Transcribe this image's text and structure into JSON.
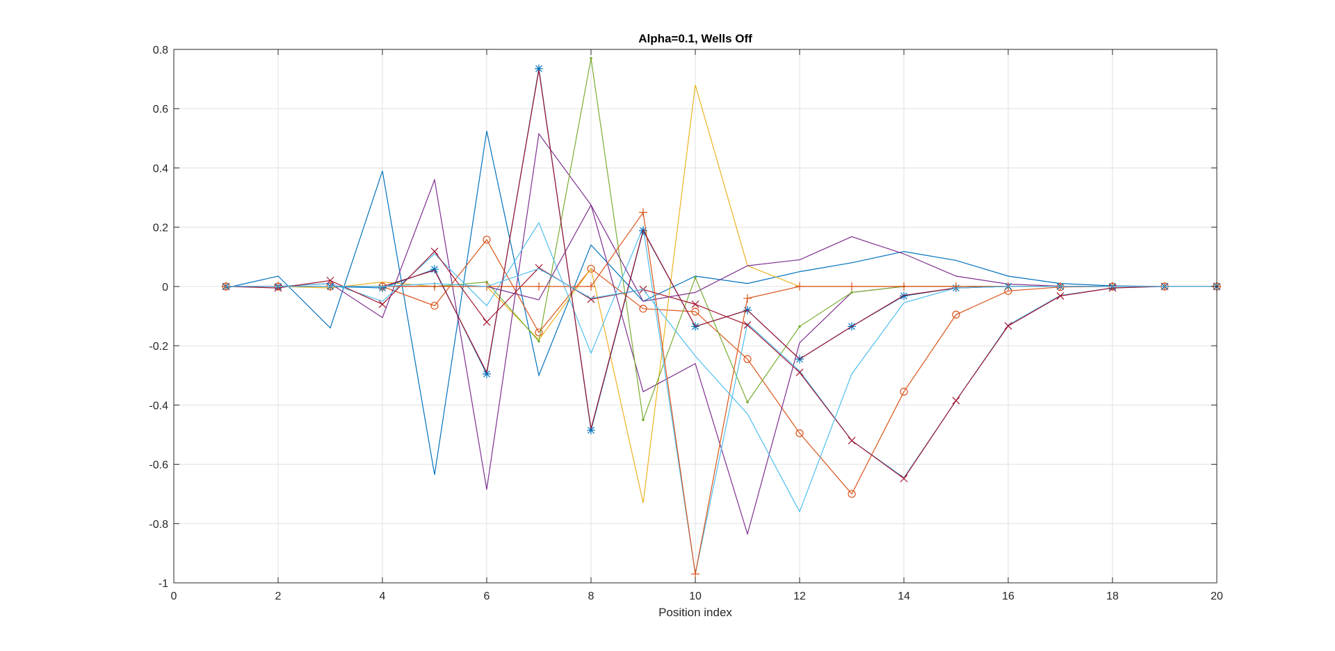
{
  "chart_data": {
    "type": "line",
    "title": "Alpha=0.1, Wells Off",
    "xlabel": "Position index",
    "ylabel": "",
    "xlim": [
      0,
      20
    ],
    "ylim": [
      -1,
      0.8
    ],
    "xticks": [
      0,
      2,
      4,
      6,
      8,
      10,
      12,
      14,
      16,
      18,
      20
    ],
    "yticks": [
      -1,
      -0.8,
      -0.6,
      -0.4,
      -0.2,
      0,
      0.2,
      0.4,
      0.6,
      0.8
    ],
    "xtick_labels": [
      "0",
      "2",
      "4",
      "6",
      "8",
      "10",
      "12",
      "14",
      "16",
      "18",
      "20"
    ],
    "ytick_labels": [
      "-1",
      "-0.8",
      "-0.6",
      "-0.4",
      "-0.2",
      "0",
      "0.2",
      "0.4",
      "0.6",
      "0.8"
    ],
    "grid": true,
    "x": [
      1,
      2,
      3,
      4,
      5,
      6,
      7,
      8,
      9,
      10,
      11,
      12,
      13,
      14,
      15,
      16,
      17,
      18,
      19,
      20
    ],
    "series": [
      {
        "color": "#0072BD",
        "marker": "none",
        "values": [
          -0.005,
          0.035,
          -0.14,
          0.39,
          -0.635,
          0.525,
          -0.3,
          0.14,
          -0.05,
          0.035,
          0.01,
          0.05,
          0.08,
          0.118,
          0.088,
          0.035,
          0.01,
          0.002,
          0.0,
          0.0
        ]
      },
      {
        "color": "#D95319",
        "marker": "o",
        "values": [
          0.0,
          0.0,
          0.0,
          0.0,
          -0.065,
          0.158,
          -0.155,
          0.06,
          -0.075,
          -0.085,
          -0.245,
          -0.495,
          -0.7,
          -0.355,
          -0.095,
          -0.015,
          -0.002,
          0.0,
          0.0,
          0.0
        ]
      },
      {
        "color": "#EDB120",
        "marker": "none",
        "values": [
          0.0,
          0.0,
          -0.005,
          0.015,
          0.0,
          0.0,
          -0.18,
          0.06,
          -0.73,
          0.68,
          0.07,
          0.0,
          0.0,
          0.0,
          0.0,
          0.0,
          0.0,
          0.0,
          0.0,
          0.0
        ]
      },
      {
        "color": "#7E2F8E",
        "marker": "none",
        "values": [
          0.0,
          0.0,
          0.01,
          -0.105,
          0.36,
          -0.685,
          0.515,
          0.275,
          -0.355,
          -0.26,
          -0.835,
          -0.19,
          -0.02,
          0.0,
          0.0,
          0.0,
          0.0,
          0.0,
          0.0,
          0.0
        ]
      },
      {
        "color": "#77AC30",
        "marker": ".",
        "values": [
          0.0,
          0.0,
          0.0,
          0.0,
          0.0,
          0.015,
          -0.185,
          0.77,
          -0.45,
          0.03,
          -0.39,
          -0.135,
          -0.02,
          0.0,
          0.0,
          0.0,
          0.0,
          0.0,
          0.0,
          0.0
        ]
      },
      {
        "color": "#4DBEEE",
        "marker": "none",
        "values": [
          0.0,
          0.0,
          0.01,
          -0.05,
          0.11,
          -0.065,
          0.215,
          -0.225,
          0.2,
          -0.97,
          -0.125,
          -0.285,
          -0.52,
          -0.645,
          -0.385,
          -0.13,
          -0.03,
          -0.005,
          0.0,
          0.0
        ]
      },
      {
        "color": "#A2142F",
        "marker": "x",
        "values": [
          0.0,
          -0.005,
          0.02,
          -0.06,
          0.118,
          -0.12,
          0.063,
          -0.043,
          -0.01,
          -0.06,
          -0.13,
          -0.29,
          -0.52,
          -0.648,
          -0.385,
          -0.133,
          -0.032,
          -0.005,
          0.0,
          0.0
        ]
      },
      {
        "color": "#7E2F8E",
        "marker": "none",
        "values": [
          0.0,
          0.0,
          0.0,
          0.0,
          0.0,
          0.0,
          -0.045,
          0.275,
          -0.05,
          -0.02,
          0.07,
          0.09,
          0.168,
          0.11,
          0.035,
          0.008,
          0.001,
          0.0,
          0.0,
          0.0
        ]
      },
      {
        "color": "#0072BD",
        "marker": "*",
        "values": [
          0.0,
          0.0,
          0.0,
          -0.005,
          0.058,
          -0.295,
          0.735,
          -0.485,
          0.188,
          -0.135,
          -0.08,
          -0.245,
          -0.135,
          -0.032,
          -0.005,
          0.0,
          0.0,
          0.0,
          0.0,
          0.0
        ]
      },
      {
        "color": "#D95319",
        "marker": "+",
        "values": [
          0.0,
          0.0,
          0.0,
          0.0,
          0.0,
          0.0,
          0.0,
          0.0,
          0.25,
          -0.97,
          -0.04,
          0.0,
          0.0,
          0.0,
          0.0,
          0.0,
          0.0,
          0.0,
          0.0,
          0.0
        ]
      },
      {
        "color": "#A2142F",
        "marker": "none",
        "values": [
          0.0,
          0.0,
          0.0,
          0.0,
          0.055,
          -0.29,
          0.73,
          -0.48,
          0.19,
          -0.135,
          -0.08,
          -0.245,
          -0.135,
          -0.03,
          -0.005,
          0.0,
          0.0,
          0.0,
          0.0,
          0.0
        ]
      },
      {
        "color": "#4DBEEE",
        "marker": "none",
        "values": [
          0.0,
          0.0,
          0.0,
          0.0,
          0.01,
          0.0,
          0.06,
          -0.04,
          -0.01,
          -0.235,
          -0.43,
          -0.76,
          -0.295,
          -0.055,
          -0.005,
          0.0,
          0.0,
          0.0,
          0.0,
          0.0
        ]
      }
    ]
  }
}
